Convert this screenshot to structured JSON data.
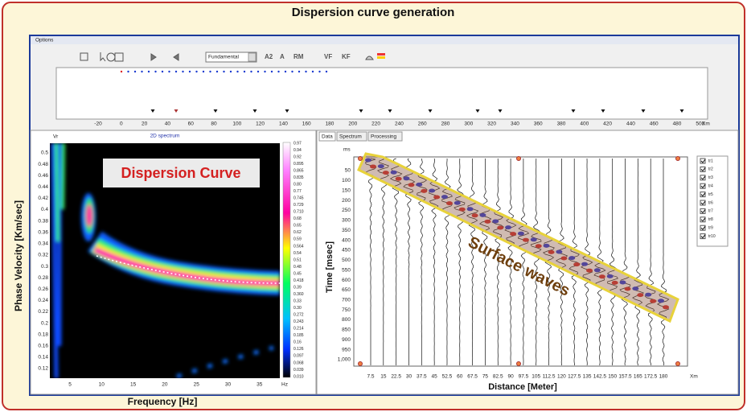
{
  "header": {
    "title": "Dispersion curve generation"
  },
  "window": {
    "menu": "Options",
    "toolbar": {
      "mode": "Fundamental",
      "buttons": [
        "A2",
        "A",
        "RM",
        "VF",
        "KF"
      ]
    },
    "ruler": {
      "ticks": [
        "-20",
        "0",
        "20",
        "40",
        "60",
        "80",
        "100",
        "120",
        "140",
        "160",
        "180",
        "200",
        "220",
        "240",
        "260",
        "280",
        "300",
        "320",
        "340",
        "360",
        "380",
        "400",
        "420",
        "440",
        "460",
        "480",
        "500"
      ],
      "unit": "Xm"
    }
  },
  "spectrum_panel": {
    "axis_top": "Vr",
    "title": "2D spectrum",
    "annotation": "Dispersion Curve",
    "y_label": "Phase Velocity [Km/sec]",
    "y_ticks": [
      "0.5",
      "0.48",
      "0.46",
      "0.44",
      "0.42",
      "0.4",
      "0.38",
      "0.36",
      "0.34",
      "0.32",
      "0.3",
      "0.28",
      "0.26",
      "0.24",
      "0.22",
      "0.2",
      "0.18",
      "0.16",
      "0.14",
      "0.12"
    ],
    "x_ticks": [
      "5",
      "10",
      "15",
      "20",
      "25",
      "30",
      "35"
    ],
    "x_unit": "Hz",
    "x_label": "Frequency [Hz]",
    "colorbar_ticks": [
      "0.97",
      "0.94",
      "0.92",
      "0.895",
      "0.865",
      "0.835",
      "0.80",
      "0.77",
      "0.745",
      "0.729",
      "0.710",
      "0.68",
      "0.65",
      "0.62",
      "0.59",
      "0.564",
      "0.54",
      "0.51",
      "0.48",
      "0.45",
      "0.418",
      "0.39",
      "0.360",
      "0.33",
      "0.30",
      "0.272",
      "0.243",
      "0.214",
      "0.185",
      "0.16",
      "0.126",
      "0.097",
      "0.068",
      "0.039",
      "0.010"
    ]
  },
  "data_panel": {
    "tabs": [
      "Data",
      "Spectrum",
      "Processing"
    ],
    "y_unit": "ms",
    "y_label": "Time [msec]",
    "y_ticks": [
      "50",
      "100",
      "150",
      "200",
      "250",
      "300",
      "350",
      "400",
      "450",
      "500",
      "550",
      "600",
      "650",
      "700",
      "750",
      "800",
      "850",
      "900",
      "950",
      "1,000"
    ],
    "x_ticks": [
      "7.5",
      "15",
      "22.5",
      "30",
      "37.5",
      "45",
      "52.5",
      "60",
      "67.5",
      "75",
      "82.5",
      "90",
      "97.5",
      "105",
      "112.5",
      "120",
      "127.5",
      "135",
      "142.5",
      "150",
      "157.5",
      "165",
      "172.5",
      "180"
    ],
    "x_unit": "Xm",
    "x_label": "Distance [Meter]",
    "annotation": "Surface waves",
    "traces": [
      "tr1",
      "tr2",
      "tr3",
      "tr4",
      "tr5",
      "tr6",
      "tr7",
      "tr8",
      "tr9",
      "tr10"
    ]
  }
}
